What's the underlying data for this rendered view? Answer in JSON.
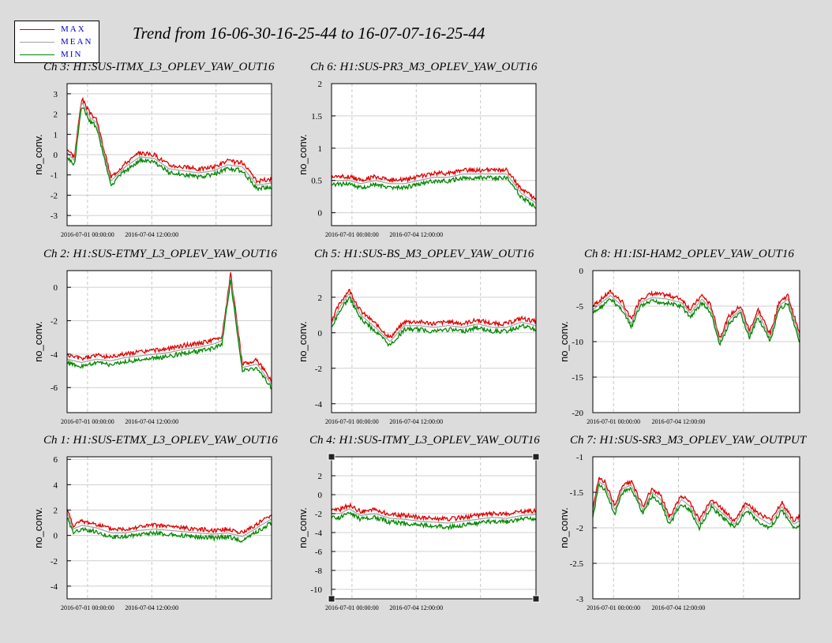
{
  "title": "Trend from 16-06-30-16-25-44 to 16-07-07-16-25-44",
  "legend": {
    "items": [
      {
        "label": "MAX",
        "color": "#e00000"
      },
      {
        "label": "MEAN",
        "color": "#a0a0a0"
      },
      {
        "label": "MIN",
        "color": "#008800"
      }
    ],
    "placement": "top-left"
  },
  "chart_data": [
    {
      "type": "line",
      "title": "Ch 3: H1:SUS-ITMX_L3_OPLEV_YAW_OUT16",
      "ylabel": "no_conv.",
      "ylim": [
        -3.5,
        3.5
      ],
      "yticks": [
        3,
        2,
        1,
        0,
        -1,
        -2,
        -3
      ],
      "xticks": [
        "2016-07-01 00:00:00",
        "2016-07-04 12:00:00"
      ],
      "grid": true,
      "series": [
        {
          "name": "MEAN",
          "x": [
            0,
            0.25,
            0.5,
            0.8,
            1,
            1.5,
            2,
            2.5,
            3,
            3.5,
            4,
            4.5,
            5,
            5.5,
            6,
            6.5,
            7
          ],
          "values": [
            0.1,
            -0.3,
            2.6,
            1.8,
            1.6,
            -1.3,
            -0.6,
            -0.1,
            -0.2,
            -0.7,
            -0.8,
            -0.9,
            -0.8,
            -0.5,
            -0.6,
            -1.5,
            -1.4
          ]
        }
      ]
    },
    {
      "type": "line",
      "title": "Ch 6: H1:SUS-PR3_M3_OPLEV_YAW_OUT16",
      "ylabel": "no_conv.",
      "ylim": [
        -0.2,
        2
      ],
      "yticks": [
        2,
        1.5,
        1,
        0.5,
        0
      ],
      "xticks": [
        "2016-07-01 00:00:00",
        "2016-07-04 12:00:00"
      ],
      "grid": true,
      "series": [
        {
          "name": "MEAN",
          "x": [
            0,
            0.3,
            0.6,
            1,
            1.5,
            2,
            2.5,
            3,
            3.5,
            4,
            4.5,
            5,
            5.5,
            6,
            6.5,
            7
          ],
          "values": [
            0.5,
            0.5,
            0.5,
            0.45,
            0.5,
            0.45,
            0.45,
            0.5,
            0.55,
            0.55,
            0.6,
            0.6,
            0.6,
            0.6,
            0.3,
            0.15
          ]
        }
      ]
    },
    {
      "type": "line",
      "title": "Ch 2: H1:SUS-ETMY_L3_OPLEV_YAW_OUT16",
      "ylabel": "no_conv.",
      "ylim": [
        -7.5,
        1
      ],
      "yticks": [
        0,
        -2,
        -4,
        -6
      ],
      "xticks": [
        "2016-07-01 00:00:00",
        "2016-07-04 12:00:00"
      ],
      "grid": true,
      "series": [
        {
          "name": "MEAN",
          "x": [
            0,
            0.5,
            1,
            1.5,
            2,
            2.5,
            3,
            3.5,
            4,
            4.5,
            5,
            5.3,
            5.6,
            6,
            6.5,
            7
          ],
          "values": [
            -4.3,
            -4.5,
            -4.3,
            -4.4,
            -4.2,
            -4.1,
            -4,
            -3.9,
            -3.7,
            -3.6,
            -3.4,
            -3.2,
            0.6,
            -4.8,
            -4.6,
            -5.8
          ]
        }
      ]
    },
    {
      "type": "line",
      "title": "Ch 5: H1:SUS-BS_M3_OPLEV_YAW_OUT16",
      "ylabel": "no_conv.",
      "ylim": [
        -4.5,
        3.5
      ],
      "yticks": [
        2,
        0,
        -2,
        -4
      ],
      "xticks": [
        "2016-07-01 00:00:00",
        "2016-07-04 12:00:00"
      ],
      "grid": true,
      "series": [
        {
          "name": "MEAN",
          "x": [
            0,
            0.3,
            0.6,
            1,
            1.5,
            2,
            2.5,
            3,
            3.5,
            4,
            4.5,
            5,
            5.5,
            6,
            6.5,
            7
          ],
          "values": [
            0.5,
            1.5,
            2.2,
            1,
            0.3,
            -0.5,
            0.4,
            0.4,
            0.3,
            0.4,
            0.3,
            0.5,
            0.3,
            0.3,
            0.6,
            0.4
          ]
        }
      ]
    },
    {
      "type": "line",
      "title": "Ch 8: H1:ISI-HAM2_OPLEV_YAW_OUT16",
      "ylabel": "no_conv.",
      "ylim": [
        -20,
        0
      ],
      "yticks": [
        0,
        -5,
        -10,
        -15,
        -20
      ],
      "xticks": [
        "2016-07-01 00:00:00",
        "2016-07-04 12:00:00"
      ],
      "grid": true,
      "series": [
        {
          "name": "MEAN",
          "x": [
            0,
            0.3,
            0.6,
            1,
            1.3,
            1.6,
            2,
            2.5,
            3,
            3.3,
            3.7,
            4,
            4.3,
            4.6,
            5,
            5.3,
            5.6,
            6,
            6.3,
            6.6,
            7
          ],
          "values": [
            -5.5,
            -4.5,
            -3.5,
            -5,
            -7.5,
            -4.5,
            -3.8,
            -4,
            -4.5,
            -6,
            -4,
            -5.5,
            -10,
            -7,
            -5.5,
            -9,
            -6,
            -9.5,
            -5,
            -4,
            -9.5
          ]
        }
      ]
    },
    {
      "type": "line",
      "title": "Ch 1: H1:SUS-ETMX_L3_OPLEV_YAW_OUT16",
      "ylabel": "no_conv.",
      "ylim": [
        -5,
        6.2
      ],
      "yticks": [
        6,
        4,
        2,
        0,
        -2,
        -4
      ],
      "xticks": [
        "2016-07-01 00:00:00",
        "2016-07-04 12:00:00"
      ],
      "grid": true,
      "series": [
        {
          "name": "MEAN",
          "x": [
            0,
            0.2,
            0.5,
            1,
            1.5,
            2,
            2.5,
            3,
            3.5,
            4,
            4.5,
            5,
            5.5,
            6,
            6.5,
            7
          ],
          "values": [
            1.8,
            0.5,
            0.8,
            0.6,
            0.2,
            0.2,
            0.4,
            0.5,
            0.4,
            0.3,
            0.2,
            0.1,
            0.2,
            -0.1,
            0.6,
            1.3
          ]
        }
      ]
    },
    {
      "type": "line",
      "title": "Ch 4: H1:SUS-ITMY_L3_OPLEV_YAW_OUT16",
      "ylabel": "no_conv.",
      "ylim": [
        -11,
        4
      ],
      "yticks": [
        2,
        0,
        -2,
        -4,
        -6,
        -8,
        -10
      ],
      "xticks": [
        "2016-07-01 00:00:00",
        "2016-07-04 12:00:00"
      ],
      "grid": true,
      "series": [
        {
          "name": "MEAN",
          "x": [
            0,
            0.3,
            0.6,
            1,
            1.5,
            2,
            2.5,
            3,
            3.5,
            4,
            4.5,
            5,
            5.5,
            6,
            6.5,
            7
          ],
          "values": [
            -2,
            -2,
            -1.5,
            -2.2,
            -2,
            -2.5,
            -2.6,
            -2.8,
            -2.9,
            -3,
            -2.8,
            -2.6,
            -2.4,
            -2.5,
            -2.2,
            -2.1
          ]
        }
      ]
    },
    {
      "type": "line",
      "title": "Ch 7: H1:SUS-SR3_M3_OPLEV_YAW_OUTPUT",
      "ylabel": "no_conv.",
      "ylim": [
        -3,
        -1
      ],
      "yticks": [
        -1,
        -1.5,
        -2,
        -2.5,
        -3
      ],
      "xticks": [
        "2016-07-01 00:00:00",
        "2016-07-04 12:00:00"
      ],
      "grid": true,
      "series": [
        {
          "name": "MEAN",
          "x": [
            0,
            0.2,
            0.4,
            0.75,
            1,
            1.3,
            1.7,
            2,
            2.3,
            2.6,
            3,
            3.3,
            3.6,
            4,
            4.4,
            4.8,
            5.2,
            5.6,
            6,
            6.4,
            6.8,
            7
          ],
          "values": [
            -1.8,
            -1.35,
            -1.4,
            -1.75,
            -1.45,
            -1.4,
            -1.75,
            -1.5,
            -1.6,
            -1.9,
            -1.6,
            -1.7,
            -1.95,
            -1.65,
            -1.8,
            -1.95,
            -1.7,
            -1.85,
            -1.95,
            -1.7,
            -1.95,
            -1.9
          ]
        }
      ]
    }
  ]
}
